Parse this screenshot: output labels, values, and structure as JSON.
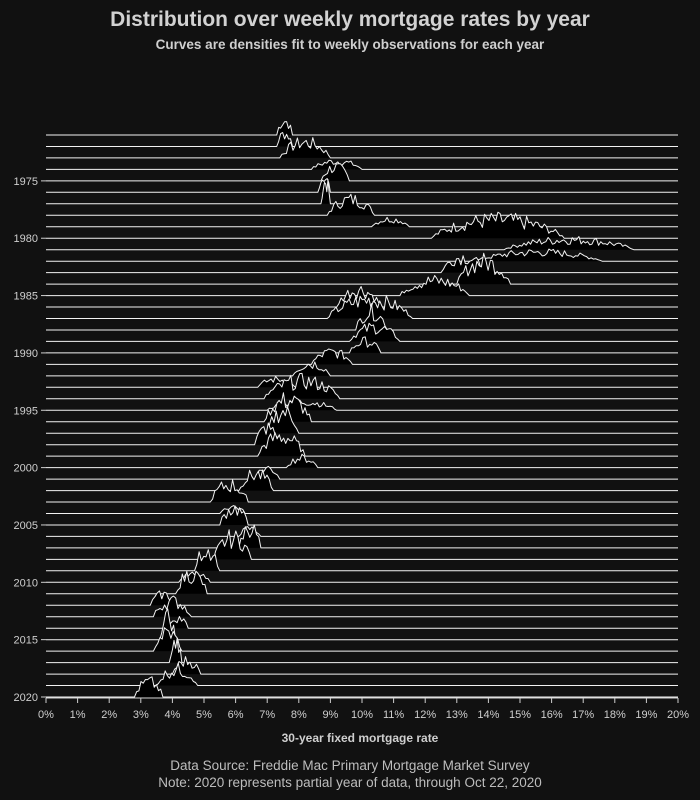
{
  "chart_data": {
    "type": "ridgeline",
    "title": "Distribution over weekly mortgage rates by year",
    "subtitle": "Curves are densities fit to weekly observations for each year",
    "xlabel": "30-year fixed mortgage rate",
    "ylabel": "",
    "xlim": [
      0,
      20
    ],
    "x_ticks": [
      "0%",
      "1%",
      "2%",
      "3%",
      "4%",
      "5%",
      "6%",
      "7%",
      "8%",
      "9%",
      "10%",
      "11%",
      "12%",
      "13%",
      "14%",
      "15%",
      "16%",
      "17%",
      "18%",
      "19%",
      "20%"
    ],
    "y_ticks": [
      "1975",
      "1980",
      "1985",
      "1990",
      "1995",
      "2000",
      "2005",
      "2010",
      "2015",
      "2020"
    ],
    "years": [
      1971,
      1972,
      1973,
      1974,
      1975,
      1976,
      1977,
      1978,
      1979,
      1980,
      1981,
      1982,
      1983,
      1984,
      1985,
      1986,
      1987,
      1988,
      1989,
      1990,
      1991,
      1992,
      1993,
      1994,
      1995,
      1996,
      1997,
      1998,
      1999,
      2000,
      2001,
      2002,
      2003,
      2004,
      2005,
      2006,
      2007,
      2008,
      2009,
      2010,
      2011,
      2012,
      2013,
      2014,
      2015,
      2016,
      2017,
      2018,
      2019,
      2020
    ],
    "rate_ranges": [
      [
        7.3,
        7.8
      ],
      [
        7.3,
        7.8
      ],
      [
        7.4,
        9.0
      ],
      [
        8.4,
        10.0
      ],
      [
        8.7,
        9.6
      ],
      [
        8.6,
        9.0
      ],
      [
        8.7,
        9.0
      ],
      [
        8.9,
        10.4
      ],
      [
        10.3,
        11.5
      ],
      [
        12.2,
        16.4
      ],
      [
        14.5,
        18.6
      ],
      [
        13.6,
        17.6
      ],
      [
        12.5,
        13.9
      ],
      [
        13.0,
        14.7
      ],
      [
        11.2,
        13.4
      ],
      [
        9.2,
        10.6
      ],
      [
        8.9,
        11.6
      ],
      [
        9.8,
        10.8
      ],
      [
        9.6,
        11.2
      ],
      [
        9.6,
        10.6
      ],
      [
        8.4,
        9.7
      ],
      [
        7.8,
        9.0
      ],
      [
        6.7,
        7.9
      ],
      [
        6.9,
        9.3
      ],
      [
        7.0,
        9.2
      ],
      [
        6.9,
        8.4
      ],
      [
        7.0,
        8.0
      ],
      [
        6.6,
        7.4
      ],
      [
        6.7,
        8.2
      ],
      [
        7.6,
        8.6
      ],
      [
        6.6,
        7.4
      ],
      [
        6.1,
        7.2
      ],
      [
        5.2,
        6.4
      ],
      [
        5.5,
        6.3
      ],
      [
        5.5,
        6.4
      ],
      [
        6.1,
        6.8
      ],
      [
        6.1,
        6.8
      ],
      [
        5.3,
        6.5
      ],
      [
        4.7,
        5.5
      ],
      [
        4.2,
        5.2
      ],
      [
        4.1,
        5.1
      ],
      [
        3.3,
        4.1
      ],
      [
        3.4,
        4.6
      ],
      [
        3.8,
        4.5
      ],
      [
        3.6,
        4.1
      ],
      [
        3.4,
        4.3
      ],
      [
        3.9,
        4.3
      ],
      [
        4.0,
        4.9
      ],
      [
        3.5,
        4.8
      ],
      [
        2.8,
        3.7
      ]
    ]
  }
}
